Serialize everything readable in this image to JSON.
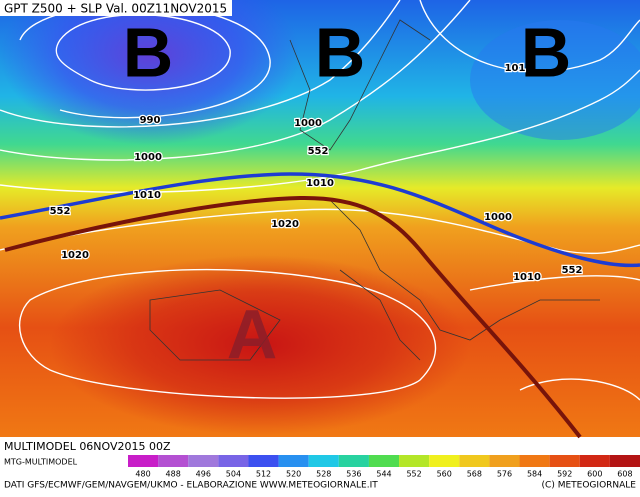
{
  "header": {
    "title": "GPT Z500 + SLP Val. 00Z11NOV2015"
  },
  "centers": [
    "B",
    "B",
    "B",
    "A"
  ],
  "contour_labels": [
    "990",
    "1000",
    "1010",
    "1020",
    "552",
    "1000",
    "552",
    "1010",
    "1020",
    "1000",
    "1010",
    "552",
    "101"
  ],
  "run_info": "MULTIMODEL 06NOV2015 00Z",
  "model_tag": "MTG-MULTIMODEL",
  "colorbar": {
    "ticks": [
      480,
      488,
      496,
      504,
      512,
      520,
      528,
      536,
      544,
      552,
      560,
      568,
      576,
      584,
      592,
      600,
      608
    ],
    "colors": [
      "#c81ec8",
      "#b450d2",
      "#a078dc",
      "#7864e6",
      "#3c50f0",
      "#2890f0",
      "#20c8e6",
      "#28d2a0",
      "#50dc50",
      "#b4e628",
      "#f0f01e",
      "#f0c81e",
      "#f0a01e",
      "#f07814",
      "#e65014",
      "#d22814",
      "#b41414"
    ]
  },
  "footer": {
    "credits": "DATI GFS/ECMWF/GEM/NAVGEM/UKMO - ELABORAZIONE WWW.METEOGIORNALE.IT",
    "copyright": "(C) METEOGIORNALE"
  }
}
